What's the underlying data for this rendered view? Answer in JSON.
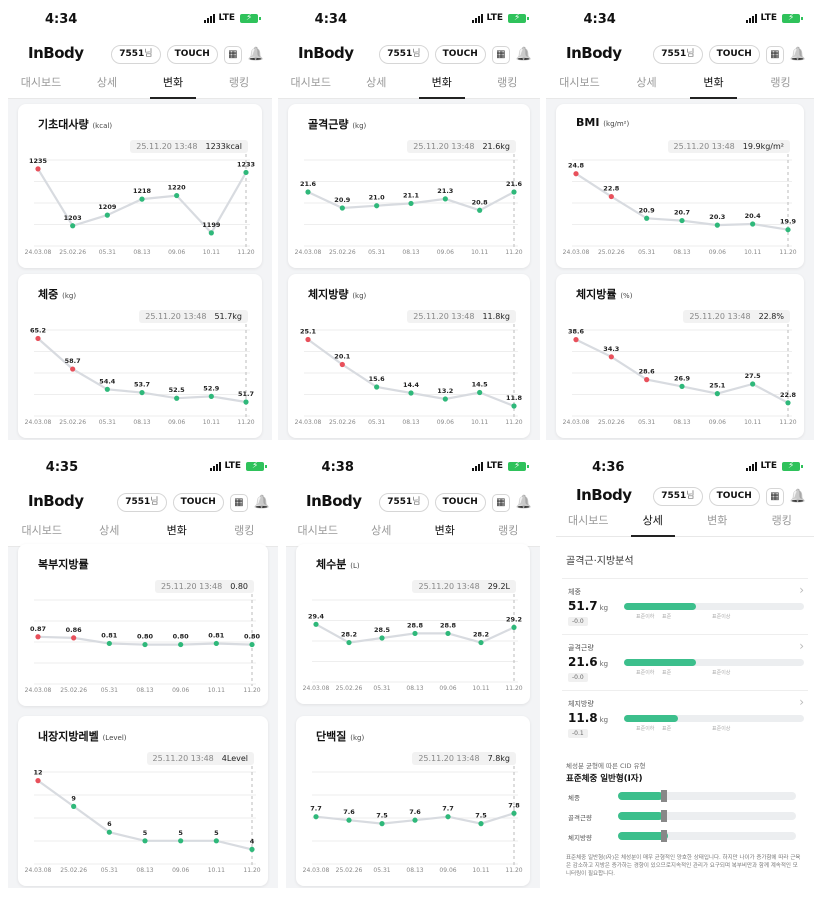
{
  "common": {
    "logo": "InBody",
    "user_id": "7551",
    "user_suffix": "님",
    "touch_label": "TOUCH",
    "tabs": [
      "대시보드",
      "상세",
      "변화",
      "랭킹"
    ],
    "signal": "LTE",
    "x_dates": [
      "24.03.08",
      "25.02.26",
      "05.31",
      "08.13",
      "09.06",
      "10.11",
      "11.20"
    ],
    "tip_date": "25.11.20 13:48",
    "colors": {
      "red": "#e8505b",
      "green": "#2fb87a",
      "line": "#d8dbe0",
      "accent": "#3cbf8c"
    }
  },
  "screens": [
    {
      "time": "4:34",
      "active_tab": 2,
      "cards": [
        {
          "title": "기초대사량",
          "unit": "(kcal)",
          "tip_value": "1233kcal",
          "chart_data": {
            "type": "line",
            "x": [
              "24.03.08",
              "25.02.26",
              "05.31",
              "08.13",
              "09.06",
              "10.11",
              "11.20"
            ],
            "values": [
              1235,
              1203,
              1209,
              1218,
              1220,
              1199,
              1233
            ],
            "labels": [
              "1235",
              "1203",
              "1209",
              "1218",
              "1220",
              "1199",
              "1233"
            ],
            "red_points": [
              0
            ],
            "ylim": [
              1195,
              1240
            ]
          }
        },
        {
          "title": "체중",
          "unit": "(kg)",
          "tip_value": "51.7kg",
          "chart_data": {
            "type": "line",
            "x": [
              "24.03.08",
              "25.02.26",
              "05.31",
              "08.13",
              "09.06",
              "10.11",
              "11.20"
            ],
            "values": [
              65.2,
              58.7,
              54.4,
              53.7,
              52.5,
              52.9,
              51.7
            ],
            "labels": [
              "65.2",
              "58.7",
              "54.4",
              "53.7",
              "52.5",
              "52.9",
              "51.7"
            ],
            "red_points": [
              0,
              1
            ],
            "ylim": [
              50,
              67
            ]
          }
        }
      ]
    },
    {
      "time": "4:34",
      "active_tab": 2,
      "cards": [
        {
          "title": "골격근량",
          "unit": "(kg)",
          "tip_value": "21.6kg",
          "chart_data": {
            "type": "line",
            "x": [
              "24.03.08",
              "25.02.26",
              "05.31",
              "08.13",
              "09.06",
              "10.11",
              "11.20"
            ],
            "values": [
              21.6,
              20.9,
              21.0,
              21.1,
              21.3,
              20.8,
              21.6
            ],
            "labels": [
              "21.6",
              "20.9",
              "21.0",
              "21.1",
              "21.3",
              "20.8",
              "21.6"
            ],
            "red_points": [],
            "ylim": [
              19.5,
              23
            ]
          }
        },
        {
          "title": "체지방량",
          "unit": "(kg)",
          "tip_value": "11.8kg",
          "chart_data": {
            "type": "line",
            "x": [
              "24.03.08",
              "25.02.26",
              "05.31",
              "08.13",
              "09.06",
              "10.11",
              "11.20"
            ],
            "values": [
              25.1,
              20.1,
              15.6,
              14.4,
              13.2,
              14.5,
              11.8
            ],
            "labels": [
              "25.1",
              "20.1",
              "15.6",
              "14.4",
              "13.2",
              "14.5",
              "11.8"
            ],
            "red_points": [
              0,
              1
            ],
            "ylim": [
              11,
              27
            ]
          }
        }
      ]
    },
    {
      "time": "4:34",
      "active_tab": 2,
      "cards": [
        {
          "title": "BMI",
          "unit": "(kg/m²)",
          "tip_value": "19.9kg/m²",
          "chart_data": {
            "type": "line",
            "x": [
              "24.03.08",
              "25.02.26",
              "05.31",
              "08.13",
              "09.06",
              "10.11",
              "11.20"
            ],
            "values": [
              24.8,
              22.8,
              20.9,
              20.7,
              20.3,
              20.4,
              19.9
            ],
            "labels": [
              "24.8",
              "22.8",
              "20.9",
              "20.7",
              "20.3",
              "20.4",
              "19.9"
            ],
            "red_points": [
              0,
              1
            ],
            "ylim": [
              19,
              26
            ]
          }
        },
        {
          "title": "체지방률",
          "unit": "(%)",
          "tip_value": "22.8%",
          "chart_data": {
            "type": "line",
            "x": [
              "24.03.08",
              "25.02.26",
              "05.31",
              "08.13",
              "09.06",
              "10.11",
              "11.20"
            ],
            "values": [
              38.6,
              34.3,
              28.6,
              26.9,
              25.1,
              27.5,
              22.8
            ],
            "labels": [
              "38.6",
              "34.3",
              "28.6",
              "26.9",
              "25.1",
              "27.5",
              "22.8"
            ],
            "red_points": [
              0,
              1,
              2
            ],
            "ylim": [
              21,
              41
            ]
          }
        }
      ]
    },
    {
      "time": "4:35",
      "active_tab": 2,
      "cards": [
        {
          "title": "복부지방률",
          "unit": "",
          "tip_value": "0.80",
          "chart_data": {
            "type": "line",
            "x": [
              "24.03.08",
              "25.02.26",
              "05.31",
              "08.13",
              "09.06",
              "10.11",
              "11.20"
            ],
            "values": [
              0.87,
              0.86,
              0.81,
              0.8,
              0.8,
              0.81,
              0.8
            ],
            "labels": [
              "0.87",
              "0.86",
              "0.81",
              "0.80",
              "0.80",
              "0.81",
              "0.80"
            ],
            "red_points": [
              0,
              1
            ],
            "ylim": [
              0.5,
              1.2
            ]
          }
        },
        {
          "title": "내장지방레벨",
          "unit": "(Level)",
          "tip_value": "4Level",
          "chart_data": {
            "type": "line",
            "x": [
              "24.03.08",
              "25.02.26",
              "05.31",
              "08.13",
              "09.06",
              "10.11",
              "11.20"
            ],
            "values": [
              12,
              9,
              6,
              5,
              5,
              5,
              4
            ],
            "labels": [
              "12",
              "9",
              "6",
              "5",
              "5",
              "5",
              "4"
            ],
            "red_points": [
              0
            ],
            "ylim": [
              3,
              13
            ]
          }
        }
      ]
    },
    {
      "time": "4:38",
      "active_tab": 2,
      "cards": [
        {
          "title": "체수분",
          "unit": "(L)",
          "tip_value": "29.2L",
          "chart_data": {
            "type": "line",
            "x": [
              "24.03.08",
              "25.02.26",
              "05.31",
              "08.13",
              "09.06",
              "10.11",
              "11.20"
            ],
            "values": [
              29.4,
              28.2,
              28.5,
              28.8,
              28.8,
              28.2,
              29.2
            ],
            "labels": [
              "29.4",
              "28.2",
              "28.5",
              "28.8",
              "28.8",
              "28.2",
              "29.2"
            ],
            "red_points": [],
            "ylim": [
              26,
              31
            ]
          }
        },
        {
          "title": "단백질",
          "unit": "(kg)",
          "tip_value": "7.8kg",
          "chart_data": {
            "type": "line",
            "x": [
              "24.03.08",
              "25.02.26",
              "05.31",
              "08.13",
              "09.06",
              "10.11",
              "11.20"
            ],
            "values": [
              7.7,
              7.6,
              7.5,
              7.6,
              7.7,
              7.5,
              7.8
            ],
            "labels": [
              "7.7",
              "7.6",
              "7.5",
              "7.6",
              "7.7",
              "7.5",
              "7.8"
            ],
            "red_points": [],
            "ylim": [
              6.5,
              9
            ]
          }
        }
      ]
    }
  ],
  "detail": {
    "time": "4:36",
    "active_tab": 1,
    "section_title": "골격근·지방분석",
    "scale_labels": [
      "표준이하",
      "표준",
      "표준이상"
    ],
    "rows": [
      {
        "label": "체중",
        "value": "51.7",
        "unit": "kg",
        "delta": "-0.0",
        "level": 0.4
      },
      {
        "label": "골격근량",
        "value": "21.6",
        "unit": "kg",
        "delta": "-0.0",
        "level": 0.4
      },
      {
        "label": "체지방량",
        "value": "11.8",
        "unit": "kg",
        "delta": "-0.1",
        "level": 0.3
      }
    ],
    "cid_caption": "체성분 균형에 따른 CID 유형",
    "cid_type": "표준체중 일반형(I자)",
    "cid_rows": [
      {
        "label": "체중",
        "level": 0.25
      },
      {
        "label": "골격근량",
        "level": 0.25
      },
      {
        "label": "체지방량",
        "level": 0.28
      }
    ],
    "note": "표준체중 일반형(I자)은 체성분이 매우 균형적인 양호한 상태입니다. 하지만 나이가 증가함에 따라 근육은 감소하고 지방은 증가하는 경향이 있으므로지속적인 관리가 요구되며 복부비만과 함께 계속적인 모니터링이 필요합니다."
  }
}
